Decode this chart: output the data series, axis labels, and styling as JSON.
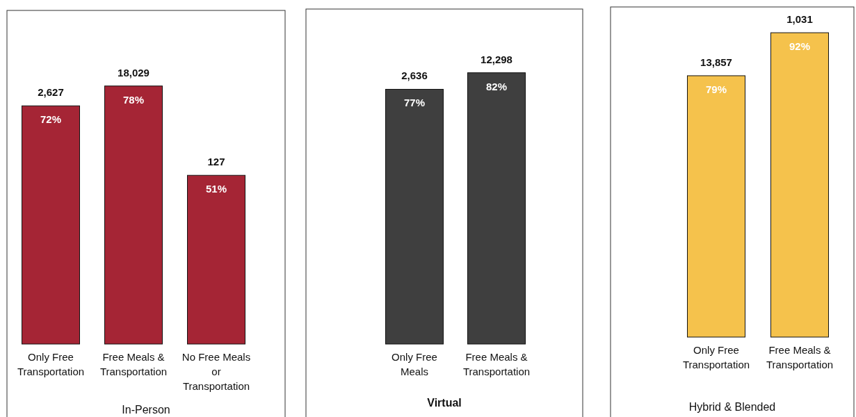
{
  "chart_data": [
    {
      "type": "bar",
      "xlabel": "In-Person",
      "categories": [
        "Only Free Transportation",
        "Free Meals & Transportation",
        "No Free Meals or Transportation"
      ],
      "values": [
        72,
        78,
        51
      ],
      "value_labels": [
        "72%",
        "78%",
        "51%"
      ],
      "color": "#a52535",
      "tick_labels": "x",
      "annotations": [
        "2,627",
        "18,029",
        "127"
      ]
    },
    {
      "type": "bar",
      "xlabel": "Virtual",
      "categories": [
        "Only Free Meals",
        "Free Meals & Transportation"
      ],
      "values": [
        77,
        82
      ],
      "value_labels": [
        "77%",
        "82%"
      ],
      "color": "#3f3f3f",
      "tick_labels": "x",
      "annotations": [
        "2,636",
        "12,298"
      ]
    },
    {
      "type": "bar",
      "xlabel": "Hybrid & Blended",
      "categories": [
        "Only Free Transportation",
        "Free Meals & Transportation"
      ],
      "values": [
        79,
        92
      ],
      "value_labels": [
        "79%",
        "92%"
      ],
      "color": "#f5c24c",
      "tick_labels": "x",
      "annotations": [
        "13,857",
        "1,031"
      ]
    }
  ]
}
